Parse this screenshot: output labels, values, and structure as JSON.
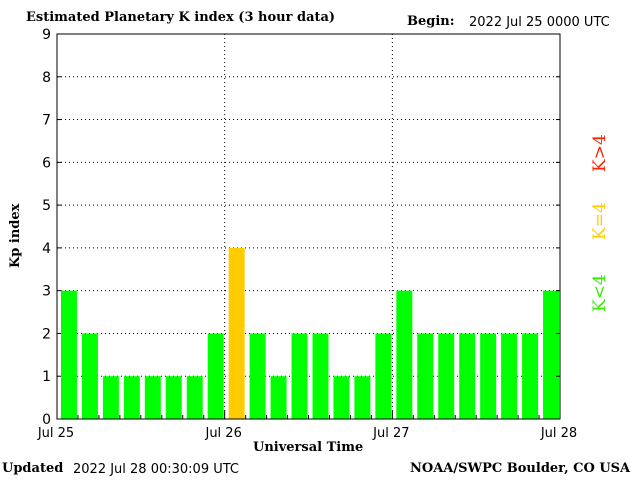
{
  "header": {
    "title": "Estimated Planetary K index (3 hour data)",
    "begin_label": "Begin:",
    "begin_value": "2022 Jul 25 0000 UTC"
  },
  "footer": {
    "updated_label": "Updated",
    "updated_value": "2022 Jul 28 00:30:09 UTC",
    "credit": "NOAA/SWPC Boulder, CO USA"
  },
  "legend": {
    "k_greater": "K>4",
    "k_equal": "K=4",
    "k_less": "K<4"
  },
  "colors": {
    "k_less": "#00ff00",
    "k_equal": "#ffcc00",
    "k_greater": "#ff0000",
    "grid": "#000000"
  },
  "chart_data": {
    "type": "bar",
    "title": "Estimated Planetary K index (3 hour data)",
    "xlabel": "Universal Time",
    "ylabel": "Kp index",
    "ylim": [
      0,
      9
    ],
    "yticks": [
      "0",
      "1",
      "2",
      "3",
      "4",
      "5",
      "6",
      "7",
      "8",
      "9"
    ],
    "xticks": [
      "Jul 25",
      "Jul 26",
      "Jul 27",
      "Jul 28"
    ],
    "grid": "dotted",
    "legend_placement": "right",
    "values": [
      3,
      2,
      1,
      1,
      1,
      1,
      1,
      2,
      4,
      2,
      1,
      2,
      2,
      1,
      1,
      2,
      3,
      2,
      2,
      2,
      2,
      2,
      2,
      3
    ]
  }
}
